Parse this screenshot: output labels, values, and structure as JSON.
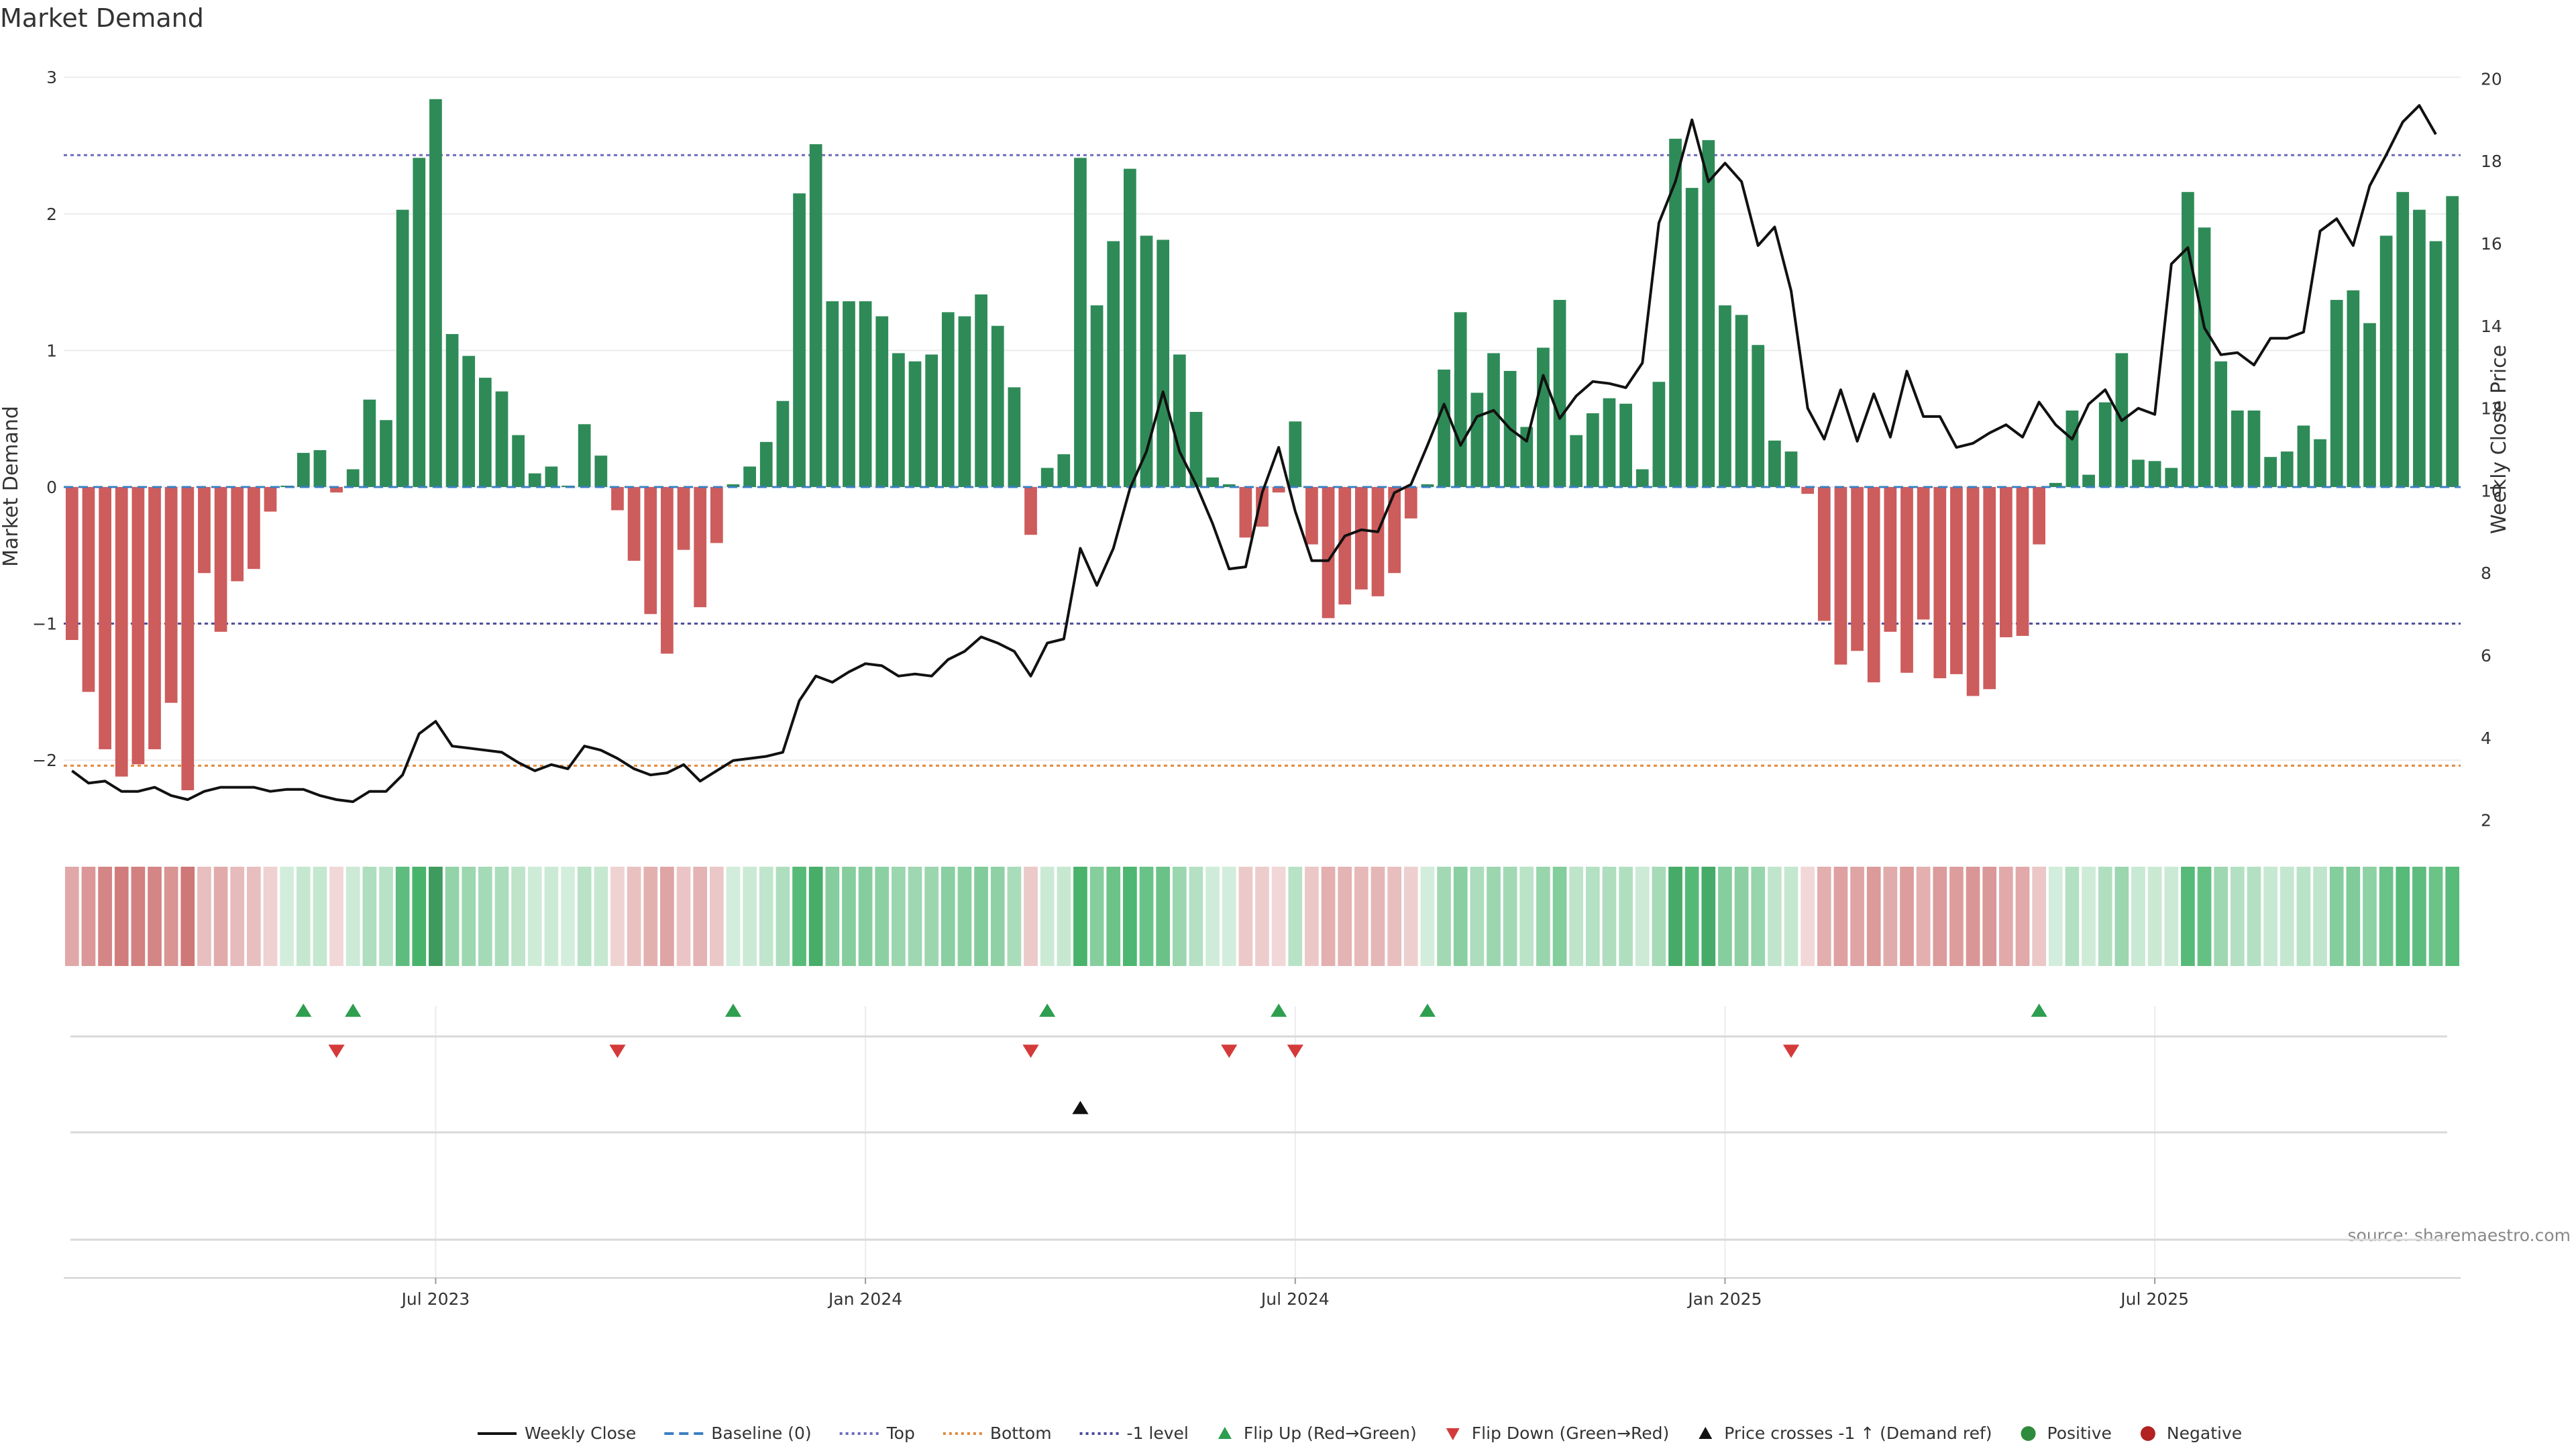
{
  "chart_data": {
    "type": "bar",
    "title": "Market Demand",
    "ylabel": "Market Demand",
    "y2label": "Weekly Close Price",
    "ylim": [
      -2.5,
      3.05
    ],
    "y2lim": [
      1.8,
      20.2
    ],
    "y_ticks": [
      -2,
      -1,
      0,
      1,
      2,
      3
    ],
    "y_tick_labels": [
      "−2",
      "−1",
      "0",
      "1",
      "2",
      "3"
    ],
    "y2_ticks": [
      2,
      4,
      6,
      8,
      10,
      12,
      14,
      16,
      18,
      20
    ],
    "x_ticks": [
      {
        "label": "Jul 2023",
        "index": 22
      },
      {
        "label": "Jan 2024",
        "index": 48
      },
      {
        "label": "Jul 2024",
        "index": 74
      },
      {
        "label": "Jan 2025",
        "index": 100
      },
      {
        "label": "Jul 2025",
        "index": 126
      }
    ],
    "reference_lines": [
      {
        "name": "Top",
        "value": 2.43,
        "color": "#6b6bbd",
        "dash": "dotted"
      },
      {
        "name": "Bottom",
        "value": -2.04,
        "color": "#e08a3c",
        "dash": "dotted"
      },
      {
        "name": "-1 level",
        "value": -1.0,
        "color": "#4a4a9a",
        "dash": "dotted"
      },
      {
        "name": "Baseline (0)",
        "value": 0,
        "color": "#3b7fc4",
        "dash": "dashed"
      }
    ],
    "demand": [
      -1.12,
      -1.5,
      -1.92,
      -2.12,
      -2.03,
      -1.92,
      -1.58,
      -2.22,
      -0.63,
      -1.06,
      -0.69,
      -0.6,
      -0.18,
      0.01,
      0.25,
      0.27,
      -0.04,
      0.13,
      0.64,
      0.49,
      2.03,
      2.41,
      2.84,
      1.12,
      0.96,
      0.8,
      0.7,
      0.38,
      0.1,
      0.15,
      0.01,
      0.46,
      0.23,
      -0.17,
      -0.54,
      -0.93,
      -1.22,
      -0.46,
      -0.88,
      -0.41,
      0.02,
      0.15,
      0.33,
      0.63,
      2.15,
      2.51,
      1.36,
      1.36,
      1.36,
      1.25,
      0.98,
      0.92,
      0.97,
      1.28,
      1.25,
      1.41,
      1.18,
      0.73,
      -0.35,
      0.14,
      0.24,
      2.41,
      1.33,
      1.8,
      2.33,
      1.84,
      1.81,
      0.97,
      0.55,
      0.07,
      0.02,
      -0.37,
      -0.29,
      -0.04,
      0.48,
      -0.42,
      -0.96,
      -0.86,
      -0.75,
      -0.8,
      -0.63,
      -0.23,
      0.02,
      0.86,
      1.28,
      0.69,
      0.98,
      0.85,
      0.44,
      1.02,
      1.37,
      0.38,
      0.54,
      0.65,
      0.61,
      0.13,
      0.77,
      2.55,
      2.19,
      2.54,
      1.33,
      1.26,
      1.04,
      0.34,
      0.26,
      -0.05,
      -0.98,
      -1.3,
      -1.2,
      -1.43,
      -1.06,
      -1.36,
      -0.97,
      -1.4,
      -1.37,
      -1.53,
      -1.48,
      -1.1,
      -1.09,
      -0.42,
      0.03,
      0.56,
      0.09,
      0.62,
      0.98,
      0.2,
      0.19,
      0.14,
      2.16,
      1.9,
      0.92,
      0.56,
      0.56,
      0.22,
      0.26,
      0.45,
      0.35,
      1.37,
      1.44,
      1.2,
      1.84,
      2.16,
      2.03,
      1.8,
      2.13
    ],
    "weekly_close": [
      3.2,
      2.9,
      2.95,
      2.7,
      2.7,
      2.8,
      2.6,
      2.5,
      2.7,
      2.8,
      2.8,
      2.8,
      2.7,
      2.75,
      2.75,
      2.6,
      2.5,
      2.45,
      2.7,
      2.7,
      3.1,
      4.1,
      4.4,
      3.8,
      3.75,
      3.7,
      3.65,
      3.4,
      3.2,
      3.35,
      3.25,
      3.8,
      3.7,
      3.5,
      3.25,
      3.1,
      3.15,
      3.35,
      2.95,
      3.2,
      3.45,
      3.5,
      3.55,
      3.65,
      4.9,
      5.5,
      5.35,
      5.6,
      5.8,
      5.75,
      5.5,
      5.55,
      5.5,
      5.9,
      6.1,
      6.45,
      6.3,
      6.1,
      5.5,
      6.3,
      6.4,
      8.6,
      7.7,
      8.6,
      10.05,
      10.95,
      12.4,
      10.95,
      10.15,
      9.2,
      8.1,
      8.15,
      9.95,
      11.05,
      9.5,
      8.3,
      8.3,
      8.9,
      9.05,
      9.0,
      9.95,
      10.15,
      11.1,
      12.1,
      11.1,
      11.8,
      11.95,
      11.5,
      11.2,
      12.8,
      11.75,
      12.3,
      12.65,
      12.6,
      12.5,
      13.1,
      16.5,
      17.5,
      19.0,
      17.5,
      17.95,
      17.5,
      15.95,
      16.4,
      14.85,
      12.0,
      11.25,
      12.45,
      11.2,
      12.35,
      11.3,
      12.9,
      11.8,
      11.8,
      11.05,
      11.15,
      11.4,
      11.6,
      11.3,
      12.15,
      11.6,
      11.25,
      12.1,
      12.45,
      11.7,
      12.0,
      11.85,
      15.5,
      15.9,
      13.95,
      13.3,
      13.35,
      13.05,
      13.7,
      13.7,
      13.85,
      16.3,
      16.6,
      15.95,
      17.4,
      18.15,
      18.95,
      19.35,
      18.65
    ],
    "flip_up": [
      14,
      17,
      40,
      59,
      73,
      82,
      119
    ],
    "flip_down": [
      16,
      33,
      58,
      70,
      74,
      104
    ],
    "price_cross": [
      61
    ],
    "legend": [
      {
        "label": "Weekly Close",
        "kind": "line",
        "color": "#111111"
      },
      {
        "label": "Baseline (0)",
        "kind": "dashed",
        "color": "#3b7fc4"
      },
      {
        "label": "Top",
        "kind": "dotted",
        "color": "#6b6bbd"
      },
      {
        "label": "Bottom",
        "kind": "dotted",
        "color": "#e08a3c"
      },
      {
        "label": "-1 level",
        "kind": "dotted",
        "color": "#4a4a9a"
      },
      {
        "label": "Flip Up (Red→Green)",
        "kind": "tri-up",
        "color": "#2e9e4f"
      },
      {
        "label": "Flip Down (Green→Red)",
        "kind": "tri-down",
        "color": "#d43a3a"
      },
      {
        "label": "Price crosses -1 ↑ (Demand ref)",
        "kind": "tri-up",
        "color": "#111111"
      },
      {
        "label": "Positive",
        "kind": "dot",
        "color": "#2e8b3d"
      },
      {
        "label": "Negative",
        "kind": "dot",
        "color": "#b22222"
      }
    ],
    "colors": {
      "positive": "#2e8b57",
      "negative": "#cd5c5c"
    },
    "source": "source: sharemaestro.com"
  }
}
